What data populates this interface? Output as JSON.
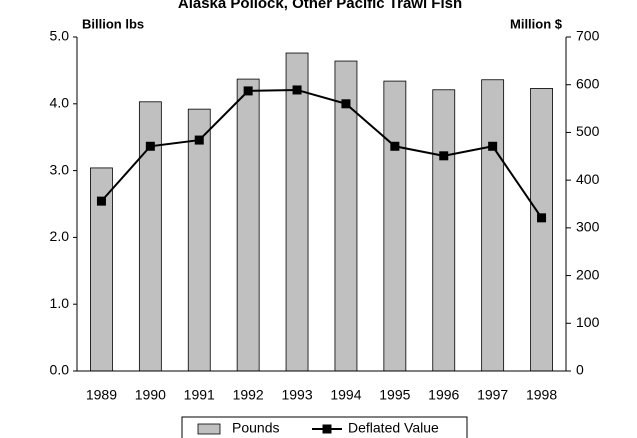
{
  "chart_data": {
    "type": "bar-line",
    "title": "Alaska Pollock, Other Pacific Trawl Fish",
    "y_label": "Billion lbs",
    "y2_label": "Million $",
    "categories": [
      "1989",
      "1990",
      "1991",
      "1992",
      "1993",
      "1994",
      "1995",
      "1996",
      "1997",
      "1998"
    ],
    "series": [
      {
        "name": "Pounds",
        "color": "#c0c0c0",
        "values": [
          3.04,
          4.03,
          3.92,
          4.37,
          4.76,
          4.64,
          4.34,
          4.21,
          4.36,
          4.23
        ]
      },
      {
        "name": "Deflated Value",
        "color": "#000000",
        "axis": "y2",
        "values": [
          356,
          471,
          484,
          587,
          589,
          560,
          471,
          451,
          471,
          321
        ]
      }
    ],
    "ylim": [
      0,
      5
    ],
    "yticks": [
      {
        "value": 0,
        "label": "0.0"
      },
      {
        "value": 1,
        "label": "1.0"
      },
      {
        "value": 2,
        "label": "2.0"
      },
      {
        "value": 3,
        "label": "3.0"
      },
      {
        "value": 4,
        "label": "4.0"
      },
      {
        "value": 5,
        "label": "5.0"
      }
    ],
    "y2lim": [
      0,
      700
    ],
    "y2ticks": [
      0,
      100,
      200,
      300,
      400,
      500,
      600,
      700
    ],
    "legend": "bottom"
  }
}
